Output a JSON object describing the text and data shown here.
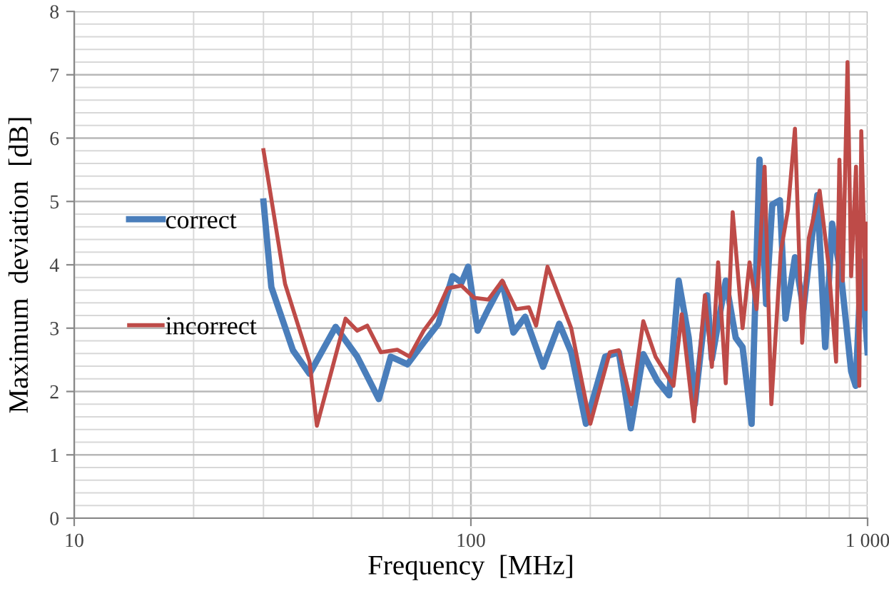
{
  "chart_data": {
    "type": "line",
    "xlabel": "Frequency  [MHz]",
    "ylabel": "Maximum  deviation  [dB]",
    "log": "x",
    "xlim": [
      10,
      1000
    ],
    "ylim": [
      0,
      8
    ],
    "xticks": [
      10,
      100,
      {
        "value": 1000,
        "label": "1 000"
      }
    ],
    "yticks": [
      0,
      1,
      2,
      3,
      4,
      5,
      6,
      7,
      8
    ],
    "grid": true,
    "legend": "left",
    "marker": "none",
    "line_style": "solid",
    "series": [
      {
        "name": "correct",
        "color": "#4a7ebb",
        "x": [
          30,
          31.4,
          35.6,
          39.2,
          45.6,
          51.7,
          58.6,
          62.8,
          69.2,
          76,
          82.8,
          89.9,
          94.7,
          98.4,
          104,
          110.6,
          120,
          128,
          137,
          152,
          167,
          179,
          195,
          218,
          236,
          253,
          272,
          295,
          316,
          334,
          354,
          367,
          394,
          405,
          439,
          465,
          484,
          510,
          534,
          555,
          575,
          601,
          621,
          656,
          689,
          711,
          747,
          782,
          814,
          860,
          909,
          933,
          964,
          1000
        ],
        "values": [
          5.0,
          3.65,
          2.65,
          2.28,
          3.02,
          2.55,
          1.88,
          2.55,
          2.43,
          2.77,
          3.07,
          3.82,
          3.72,
          3.97,
          2.96,
          3.3,
          3.72,
          2.93,
          3.18,
          2.39,
          3.07,
          2.62,
          1.49,
          2.55,
          2.62,
          1.42,
          2.59,
          2.17,
          1.94,
          3.75,
          2.85,
          1.8,
          3.52,
          2.51,
          3.75,
          2.85,
          2.7,
          1.49,
          5.66,
          3.38,
          4.95,
          5.02,
          3.15,
          4.12,
          3.3,
          4.05,
          5.1,
          2.7,
          4.65,
          3.75,
          2.32,
          2.09,
          4.05,
          2.62
        ]
      },
      {
        "name": "incorrect",
        "color": "#be4b48",
        "x": [
          30,
          34,
          39.2,
          40.9,
          48.3,
          51.7,
          54.8,
          59.3,
          65.2,
          70,
          76,
          81.6,
          87.3,
          94.7,
          101.9,
          110.6,
          120,
          130,
          140,
          146,
          156,
          179,
          200,
          224,
          236,
          254,
          272,
          292,
          324,
          340,
          365,
          389,
          405,
          420,
          439,
          457,
          484,
          504,
          525,
          550,
          572,
          604,
          630,
          656,
          684,
          711,
          757,
          798,
          833,
          849,
          866,
          890,
          909,
          935,
          953,
          964,
          991,
          1000
        ],
        "values": [
          5.81,
          3.7,
          2.47,
          1.46,
          3.15,
          2.96,
          3.04,
          2.62,
          2.66,
          2.55,
          2.96,
          3.22,
          3.63,
          3.67,
          3.48,
          3.45,
          3.75,
          3.3,
          3.33,
          3.04,
          3.97,
          3.0,
          1.49,
          2.62,
          2.65,
          1.8,
          3.11,
          2.55,
          2.09,
          3.22,
          1.53,
          3.52,
          2.39,
          4.04,
          2.13,
          4.83,
          3.0,
          4.04,
          3.3,
          5.55,
          1.8,
          4.2,
          4.87,
          6.15,
          2.77,
          4.42,
          5.17,
          3.97,
          2.47,
          5.66,
          3.75,
          7.2,
          3.82,
          5.55,
          2.09,
          6.11,
          3.3,
          4.65
        ]
      }
    ]
  }
}
